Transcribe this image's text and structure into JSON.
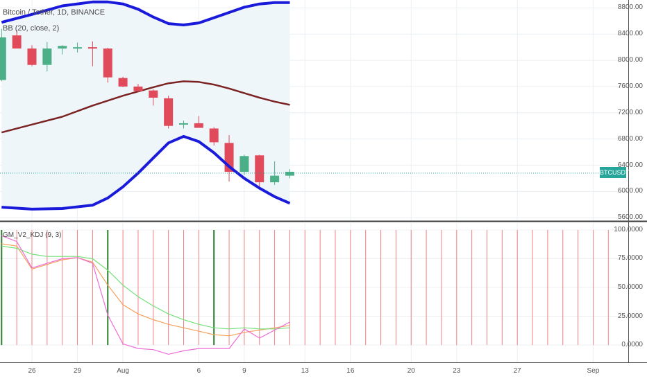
{
  "title": "Bitcoin / Tether, 1D, BINANCE",
  "bb_label": "BB (20, close, 2)",
  "kdj_label": "GM_V2_KDJ (9, 3)",
  "price_badge": "BTCUSDT",
  "colors": {
    "up": "#4caf88",
    "down": "#e04a5b",
    "bb_outer": "#1a1adb",
    "bb_basis": "#7b2323",
    "bb_fill": "#eef6fa",
    "k_line": "#f4a15d",
    "d_line": "#72e07a",
    "j_line": "#f06bd9",
    "signal": "#2f7d2f",
    "vline": "#f08080",
    "price_line": "#26a69a"
  },
  "chart_data": [
    {
      "type": "candlestick",
      "title": "Bitcoin / Tether, 1D, BINANCE",
      "y_ticks": [
        "5600.00",
        "6000.00",
        "6400.00",
        "6800.00",
        "7200.00",
        "7600.00",
        "8000.00",
        "8400.00",
        "8800.00"
      ],
      "ylim": [
        5560,
        8920
      ],
      "x_ticks": [
        {
          "day": 0,
          "label": "26"
        },
        {
          "day": 3,
          "label": "29"
        },
        {
          "day": 6,
          "label": "Aug"
        },
        {
          "day": 11,
          "label": "6"
        },
        {
          "day": 14,
          "label": "9"
        },
        {
          "day": 18,
          "label": "13"
        },
        {
          "day": 21,
          "label": "16"
        },
        {
          "day": 25,
          "label": "20"
        },
        {
          "day": 28,
          "label": "23"
        },
        {
          "day": 32,
          "label": "27"
        },
        {
          "day": 37,
          "label": "Sep"
        }
      ],
      "candles": [
        {
          "day": -2,
          "open": 7700,
          "high": 8480,
          "low": 7680,
          "close": 8350
        },
        {
          "day": -1,
          "open": 8380,
          "high": 8460,
          "low": 8200,
          "close": 8180
        },
        {
          "day": 0,
          "open": 8180,
          "high": 8230,
          "low": 7910,
          "close": 7930
        },
        {
          "day": 1,
          "open": 7930,
          "high": 8280,
          "low": 7830,
          "close": 8180
        },
        {
          "day": 2,
          "open": 8180,
          "high": 8230,
          "low": 8090,
          "close": 8220
        },
        {
          "day": 3,
          "open": 8200,
          "high": 8270,
          "low": 8120,
          "close": 8200
        },
        {
          "day": 4,
          "open": 8200,
          "high": 8290,
          "low": 7910,
          "close": 8180
        },
        {
          "day": 5,
          "open": 8180,
          "high": 8190,
          "low": 7660,
          "close": 7740
        },
        {
          "day": 6,
          "open": 7730,
          "high": 7750,
          "low": 7590,
          "close": 7600
        },
        {
          "day": 7,
          "open": 7600,
          "high": 7640,
          "low": 7520,
          "close": 7530
        },
        {
          "day": 8,
          "open": 7540,
          "high": 7560,
          "low": 7310,
          "close": 7430
        },
        {
          "day": 9,
          "open": 7420,
          "high": 7460,
          "low": 6960,
          "close": 7000
        },
        {
          "day": 10,
          "open": 7030,
          "high": 7080,
          "low": 6960,
          "close": 7040
        },
        {
          "day": 11,
          "open": 7040,
          "high": 7150,
          "low": 6970,
          "close": 6970
        },
        {
          "day": 12,
          "open": 6960,
          "high": 6980,
          "low": 6700,
          "close": 6750
        },
        {
          "day": 13,
          "open": 6740,
          "high": 6860,
          "low": 6150,
          "close": 6300
        },
        {
          "day": 14,
          "open": 6300,
          "high": 6560,
          "low": 6250,
          "close": 6540
        },
        {
          "day": 15,
          "open": 6550,
          "high": 6560,
          "low": 6070,
          "close": 6140
        },
        {
          "day": 16,
          "open": 6140,
          "high": 6460,
          "low": 6100,
          "close": 6240
        },
        {
          "day": 17,
          "open": 6240,
          "high": 6340,
          "low": 6200,
          "close": 6300
        }
      ],
      "bb_upper": [
        {
          "day": -2,
          "value": 8580
        },
        {
          "day": 0,
          "value": 8700
        },
        {
          "day": 2,
          "value": 8830
        },
        {
          "day": 4,
          "value": 8890
        },
        {
          "day": 5,
          "value": 8890
        },
        {
          "day": 6,
          "value": 8860
        },
        {
          "day": 7,
          "value": 8780
        },
        {
          "day": 8,
          "value": 8660
        },
        {
          "day": 9,
          "value": 8560
        },
        {
          "day": 10,
          "value": 8540
        },
        {
          "day": 11,
          "value": 8570
        },
        {
          "day": 12,
          "value": 8650
        },
        {
          "day": 13,
          "value": 8730
        },
        {
          "day": 14,
          "value": 8810
        },
        {
          "day": 15,
          "value": 8860
        },
        {
          "day": 16,
          "value": 8880
        },
        {
          "day": 17,
          "value": 8880
        }
      ],
      "bb_basis": [
        {
          "day": -2,
          "value": 6900
        },
        {
          "day": 0,
          "value": 7020
        },
        {
          "day": 2,
          "value": 7140
        },
        {
          "day": 4,
          "value": 7310
        },
        {
          "day": 6,
          "value": 7460
        },
        {
          "day": 8,
          "value": 7590
        },
        {
          "day": 9,
          "value": 7650
        },
        {
          "day": 10,
          "value": 7680
        },
        {
          "day": 11,
          "value": 7670
        },
        {
          "day": 12,
          "value": 7630
        },
        {
          "day": 13,
          "value": 7570
        },
        {
          "day": 14,
          "value": 7500
        },
        {
          "day": 15,
          "value": 7430
        },
        {
          "day": 16,
          "value": 7370
        },
        {
          "day": 17,
          "value": 7320
        }
      ],
      "bb_lower": [
        {
          "day": -2,
          "value": 5760
        },
        {
          "day": 0,
          "value": 5730
        },
        {
          "day": 2,
          "value": 5740
        },
        {
          "day": 4,
          "value": 5790
        },
        {
          "day": 5,
          "value": 5900
        },
        {
          "day": 6,
          "value": 6070
        },
        {
          "day": 7,
          "value": 6280
        },
        {
          "day": 8,
          "value": 6510
        },
        {
          "day": 9,
          "value": 6740
        },
        {
          "day": 10,
          "value": 6840
        },
        {
          "day": 11,
          "value": 6760
        },
        {
          "day": 12,
          "value": 6590
        },
        {
          "day": 13,
          "value": 6380
        },
        {
          "day": 14,
          "value": 6200
        },
        {
          "day": 15,
          "value": 6050
        },
        {
          "day": 16,
          "value": 5920
        },
        {
          "day": 17,
          "value": 5820
        }
      ],
      "last_price": 6280
    },
    {
      "type": "line",
      "title": "GM_V2_KDJ (9, 3)",
      "y_ticks": [
        "0.0000",
        "25.0000",
        "50.0000",
        "75.0000",
        "100.0000"
      ],
      "ylim": [
        -15,
        106
      ],
      "series": [
        {
          "key": "k",
          "points": [
            {
              "day": -2,
              "value": 88
            },
            {
              "day": -1,
              "value": 86
            },
            {
              "day": 0,
              "value": 66
            },
            {
              "day": 1,
              "value": 70
            },
            {
              "day": 2,
              "value": 74
            },
            {
              "day": 3,
              "value": 76
            },
            {
              "day": 4,
              "value": 72
            },
            {
              "day": 5,
              "value": 52
            },
            {
              "day": 6,
              "value": 35
            },
            {
              "day": 7,
              "value": 27
            },
            {
              "day": 8,
              "value": 22
            },
            {
              "day": 9,
              "value": 18
            },
            {
              "day": 10,
              "value": 15
            },
            {
              "day": 11,
              "value": 12
            },
            {
              "day": 12,
              "value": 9
            },
            {
              "day": 13,
              "value": 8
            },
            {
              "day": 14,
              "value": 11
            },
            {
              "day": 15,
              "value": 13
            },
            {
              "day": 16,
              "value": 15
            },
            {
              "day": 17,
              "value": 17
            }
          ]
        },
        {
          "key": "d",
          "points": [
            {
              "day": -2,
              "value": 86
            },
            {
              "day": -1,
              "value": 84
            },
            {
              "day": 0,
              "value": 79
            },
            {
              "day": 1,
              "value": 77
            },
            {
              "day": 2,
              "value": 77
            },
            {
              "day": 3,
              "value": 77
            },
            {
              "day": 4,
              "value": 75
            },
            {
              "day": 5,
              "value": 65
            },
            {
              "day": 6,
              "value": 52
            },
            {
              "day": 7,
              "value": 42
            },
            {
              "day": 8,
              "value": 34
            },
            {
              "day": 9,
              "value": 27
            },
            {
              "day": 10,
              "value": 22
            },
            {
              "day": 11,
              "value": 18
            },
            {
              "day": 12,
              "value": 15
            },
            {
              "day": 13,
              "value": 14
            },
            {
              "day": 14,
              "value": 15
            },
            {
              "day": 15,
              "value": 14
            },
            {
              "day": 16,
              "value": 14
            },
            {
              "day": 17,
              "value": 15
            }
          ]
        },
        {
          "key": "j",
          "points": [
            {
              "day": -2,
              "value": 95
            },
            {
              "day": -1,
              "value": 90
            },
            {
              "day": 0,
              "value": 67
            },
            {
              "day": 1,
              "value": 71
            },
            {
              "day": 2,
              "value": 75
            },
            {
              "day": 3,
              "value": 76
            },
            {
              "day": 4,
              "value": 71
            },
            {
              "day": 5,
              "value": 26
            },
            {
              "day": 6,
              "value": 1
            },
            {
              "day": 7,
              "value": -3
            },
            {
              "day": 8,
              "value": -4
            },
            {
              "day": 9,
              "value": -8
            },
            {
              "day": 10,
              "value": -5
            },
            {
              "day": 11,
              "value": -3
            },
            {
              "day": 12,
              "value": -3
            },
            {
              "day": 13,
              "value": -3
            },
            {
              "day": 14,
              "value": 14
            },
            {
              "day": 15,
              "value": 6
            },
            {
              "day": 16,
              "value": 13
            },
            {
              "day": 17,
              "value": 20
            }
          ]
        }
      ],
      "signal_days": [
        -2,
        5,
        12
      ],
      "vline_days": [
        -1,
        0,
        1,
        2,
        3,
        4,
        6,
        7,
        8,
        9,
        10,
        11,
        13,
        14,
        15,
        16,
        17,
        18,
        19,
        20,
        21,
        22,
        23,
        24,
        25,
        26,
        27,
        28,
        29,
        30,
        31,
        32,
        33,
        34,
        35,
        36,
        37,
        38
      ]
    }
  ]
}
